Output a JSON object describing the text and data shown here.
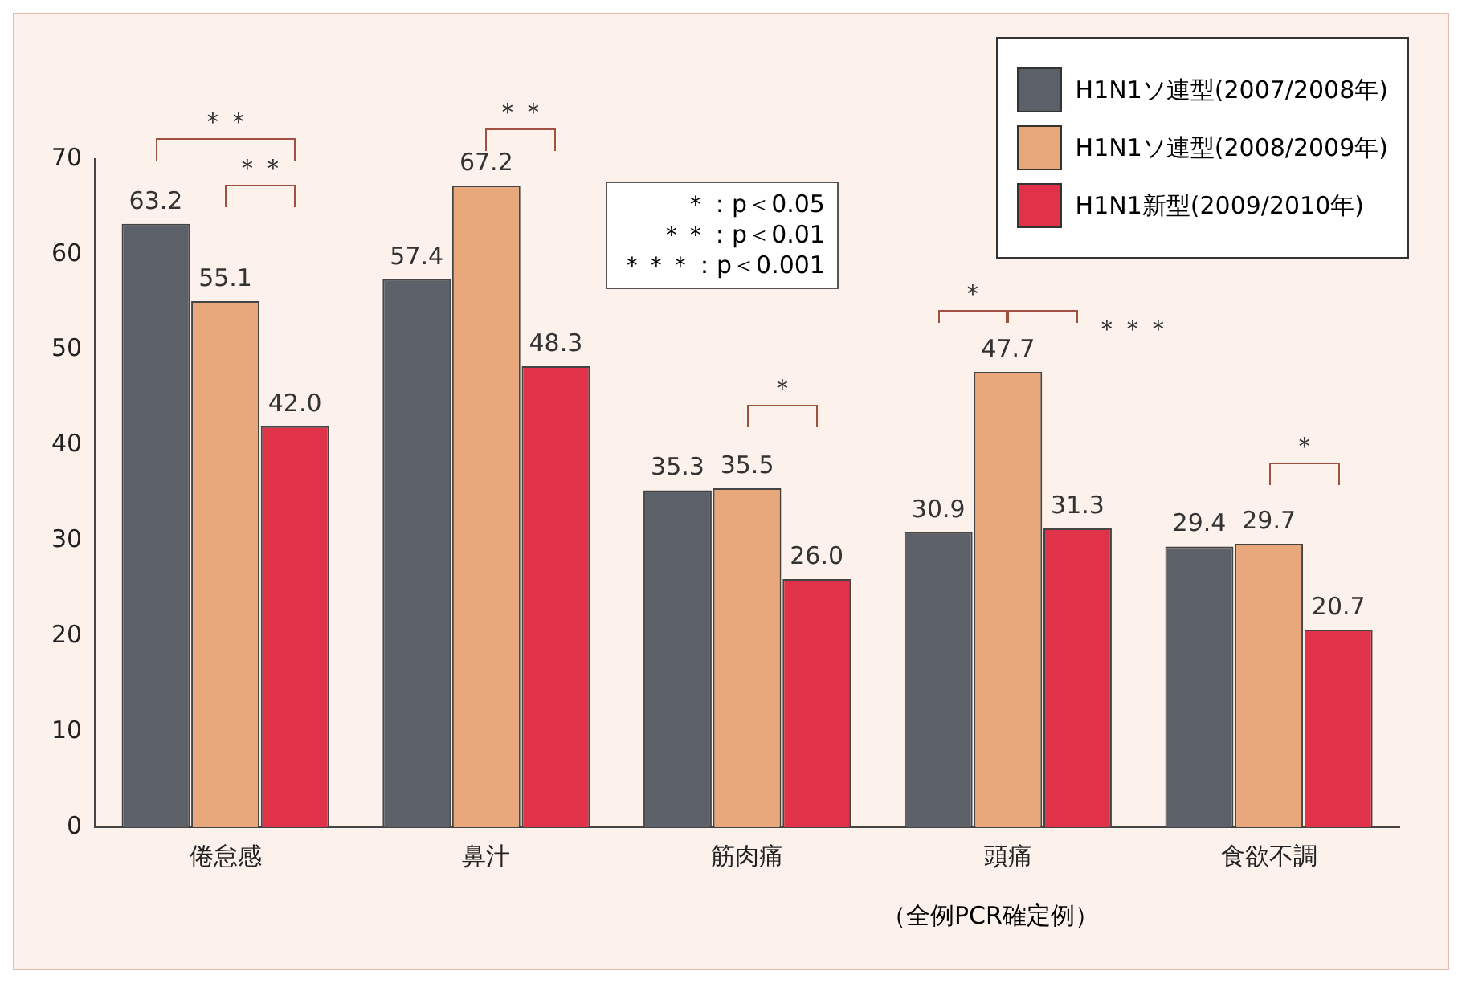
{
  "chart_data": {
    "type": "bar",
    "categories": [
      "倦怠感",
      "鼻汁",
      "筋肉痛",
      "頭痛",
      "食欲不調"
    ],
    "series": [
      {
        "name": "H1N1ソ連型(2007/2008年)",
        "color": "#5c6068",
        "values": [
          63.2,
          57.4,
          35.3,
          30.9,
          29.4
        ],
        "value_labels": [
          "63.2",
          "57.4",
          "35.3",
          "30.9",
          "29.4"
        ]
      },
      {
        "name": "H1N1ソ連型(2008/2009年)",
        "color": "#e8a87c",
        "values": [
          55.1,
          67.2,
          35.5,
          47.7,
          29.7
        ],
        "value_labels": [
          "55.1",
          "67.2",
          "35.5",
          "47.7",
          "29.7"
        ]
      },
      {
        "name": "H1N1新型(2009/2010年)",
        "color": "#e0334a",
        "values": [
          42.0,
          48.3,
          26.0,
          31.3,
          20.7
        ],
        "value_labels": [
          "42.0",
          "48.3",
          "26.0",
          "31.3",
          "20.7"
        ]
      }
    ],
    "ylim": [
      0,
      70
    ],
    "yticks": [
      0,
      10,
      20,
      30,
      40,
      50,
      60,
      70
    ],
    "grid": false,
    "legend": "top right",
    "annotations": [
      "＊：p＜0.05",
      "＊＊：p＜0.01",
      "＊＊＊：p＜0.001",
      "（全例PCR確定例）",
      "＊＊",
      "＊＊",
      "＊＊",
      "＊",
      "＊",
      "＊＊＊",
      "＊"
    ]
  }
}
